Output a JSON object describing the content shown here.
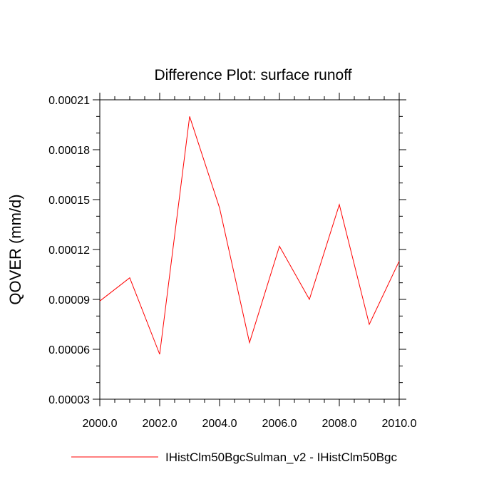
{
  "chart_data": {
    "type": "line",
    "title": "Difference Plot: surface runoff",
    "ylabel": "QOVER  (mm/d)",
    "xlabel": "",
    "xlim": [
      2000.0,
      2010.0
    ],
    "ylim": [
      3e-05,
      0.00021
    ],
    "x_ticks": [
      2000.0,
      2002.0,
      2004.0,
      2006.0,
      2008.0,
      2010.0
    ],
    "x_tick_labels": [
      "2000.0",
      "2002.0",
      "2004.0",
      "2006.0",
      "2008.0",
      "2010.0"
    ],
    "y_ticks": [
      3e-05,
      6e-05,
      9e-05,
      0.00012,
      0.00015,
      0.00018,
      0.00021
    ],
    "y_tick_labels": [
      "0.00003",
      "0.00006",
      "0.00009",
      "0.00012",
      "0.00015",
      "0.00018",
      "0.00021"
    ],
    "grid": false,
    "legend_position": "bottom",
    "series": [
      {
        "name": "IHistClm50BgcSulman_v2 - IHistClm50Bgc",
        "color": "#ff0000",
        "x": [
          2000,
          2001,
          2002,
          2003,
          2004,
          2005,
          2006,
          2007,
          2008,
          2009,
          2010
        ],
        "values": [
          8.9e-05,
          0.000103,
          5.7e-05,
          0.0002,
          0.000145,
          6.4e-05,
          0.000122,
          9e-05,
          0.000147,
          7.5e-05,
          0.000113
        ]
      }
    ]
  }
}
